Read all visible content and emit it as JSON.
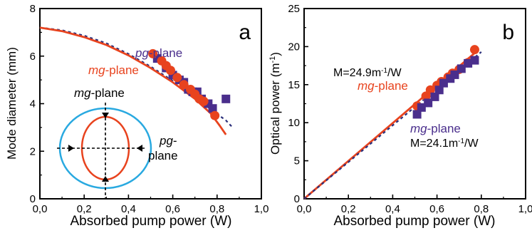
{
  "chart_data": [
    {
      "type": "scatter",
      "panel_label": "a",
      "xlabel": "Absorbed pump power (W)",
      "ylabel": "Mode diameter (mm)",
      "xlim": [
        0,
        1.0
      ],
      "ylim": [
        0,
        8
      ],
      "xticks": [
        "0,0",
        "0,2",
        "0,4",
        "0,6",
        "0,8",
        "1,0"
      ],
      "yticks": [
        "0",
        "2",
        "4",
        "6",
        "8"
      ],
      "grid": false,
      "series": [
        {
          "name": "pg-plane",
          "marker": "square",
          "color": "#4a2e8c",
          "points": [
            [
              0.53,
              5.9
            ],
            [
              0.57,
              5.5
            ],
            [
              0.6,
              5.2
            ],
            [
              0.63,
              5.0
            ],
            [
              0.65,
              4.9
            ],
            [
              0.67,
              4.6
            ],
            [
              0.69,
              4.5
            ],
            [
              0.71,
              4.5
            ],
            [
              0.73,
              4.2
            ],
            [
              0.76,
              4.0
            ],
            [
              0.78,
              3.8
            ],
            [
              0.84,
              4.2
            ]
          ],
          "fit": {
            "style": "dashed",
            "points": [
              [
                0.0,
                7.2
              ],
              [
                0.1,
                7.09
              ],
              [
                0.2,
                6.86
              ],
              [
                0.3,
                6.54
              ],
              [
                0.4,
                6.09
              ],
              [
                0.5,
                5.56
              ],
              [
                0.6,
                4.96
              ],
              [
                0.7,
                4.29
              ],
              [
                0.78,
                3.7
              ],
              [
                0.84,
                3.3
              ],
              [
                0.87,
                3.0
              ]
            ]
          }
        },
        {
          "name": "mg-plane",
          "marker": "circle",
          "color": "#e8431e",
          "points": [
            [
              0.51,
              6.1
            ],
            [
              0.55,
              5.8
            ],
            [
              0.57,
              5.6
            ],
            [
              0.59,
              5.4
            ],
            [
              0.62,
              5.1
            ],
            [
              0.65,
              4.8
            ],
            [
              0.68,
              4.6
            ],
            [
              0.7,
              4.4
            ],
            [
              0.72,
              4.2
            ],
            [
              0.74,
              4.1
            ],
            [
              0.79,
              3.5
            ]
          ],
          "fit": {
            "style": "solid",
            "points": [
              [
                0.0,
                7.2
              ],
              [
                0.1,
                7.05
              ],
              [
                0.2,
                6.8
              ],
              [
                0.3,
                6.47
              ],
              [
                0.4,
                6.03
              ],
              [
                0.5,
                5.5
              ],
              [
                0.6,
                4.9
              ],
              [
                0.7,
                4.2
              ],
              [
                0.77,
                3.6
              ],
              [
                0.81,
                3.1
              ],
              [
                0.84,
                2.7
              ]
            ]
          }
        }
      ],
      "annotations": {
        "pg_label_prefix": "pg",
        "pg_label_suffix": "-plane",
        "mg_label_prefix": "mg",
        "mg_label_suffix": "-plane"
      },
      "inset": {
        "mg_prefix": "mg",
        "mg_suffix": "-plane",
        "pg_prefix": "pg",
        "pg_suffix": "-",
        "plane_word": "plane",
        "outer_color": "#29a9e0",
        "inner_color": "#e8431e",
        "axis_color": "#000000"
      }
    },
    {
      "type": "scatter",
      "panel_label": "b",
      "xlabel": "Absorbed pump power (W)",
      "ylabel_prefix": "Optical power (m",
      "ylabel_sup": "-1",
      "ylabel_suffix": ")",
      "xlim": [
        0,
        1.0
      ],
      "ylim": [
        0,
        25
      ],
      "xticks": [
        "0,0",
        "0,2",
        "0,4",
        "0,6",
        "0,8",
        "1,0"
      ],
      "yticks": [
        "0",
        "5",
        "10",
        "15",
        "20",
        "25"
      ],
      "grid": false,
      "series": [
        {
          "name": "mg-plane",
          "marker": "circle",
          "color": "#e8431e",
          "points": [
            [
              0.51,
              12.2
            ],
            [
              0.55,
              13.5
            ],
            [
              0.57,
              14.3
            ],
            [
              0.6,
              14.9
            ],
            [
              0.62,
              15.4
            ],
            [
              0.65,
              16.0
            ],
            [
              0.67,
              16.5
            ],
            [
              0.7,
              17.0
            ],
            [
              0.74,
              17.9
            ],
            [
              0.77,
              19.6
            ]
          ],
          "fit": {
            "style": "solid",
            "slope": 24.9,
            "points": [
              [
                0.0,
                0.0
              ],
              [
                0.78,
                19.4
              ]
            ]
          }
        },
        {
          "name": "mg-plane",
          "marker": "square",
          "color": "#4a2e8c",
          "points": [
            [
              0.51,
              11.1
            ],
            [
              0.53,
              12.0
            ],
            [
              0.56,
              12.6
            ],
            [
              0.59,
              13.4
            ],
            [
              0.61,
              14.3
            ],
            [
              0.63,
              15.2
            ],
            [
              0.66,
              15.8
            ],
            [
              0.68,
              16.3
            ],
            [
              0.71,
              17.1
            ],
            [
              0.74,
              17.8
            ],
            [
              0.77,
              18.2
            ]
          ],
          "fit": {
            "style": "dashed",
            "slope": 24.1,
            "points": [
              [
                0.0,
                0.0
              ],
              [
                0.8,
                19.3
              ]
            ]
          }
        }
      ],
      "annotations": {
        "m_upper_prefix": "M=24.9m",
        "m_upper_sup": "-1",
        "m_upper_suffix": "/W",
        "mg_upper_prefix": "mg",
        "mg_upper_suffix": "-plane",
        "mg_lower_prefix": "mg",
        "mg_lower_suffix": "-plane",
        "m_lower_prefix": "M=24.1m",
        "m_lower_sup": "-1",
        "m_lower_suffix": "/W"
      }
    }
  ],
  "colors": {
    "axis": "#000000",
    "red": "#e8431e",
    "purple": "#4a2e8c",
    "blue_dash": "#2b2f7a",
    "cyan": "#29a9e0"
  }
}
